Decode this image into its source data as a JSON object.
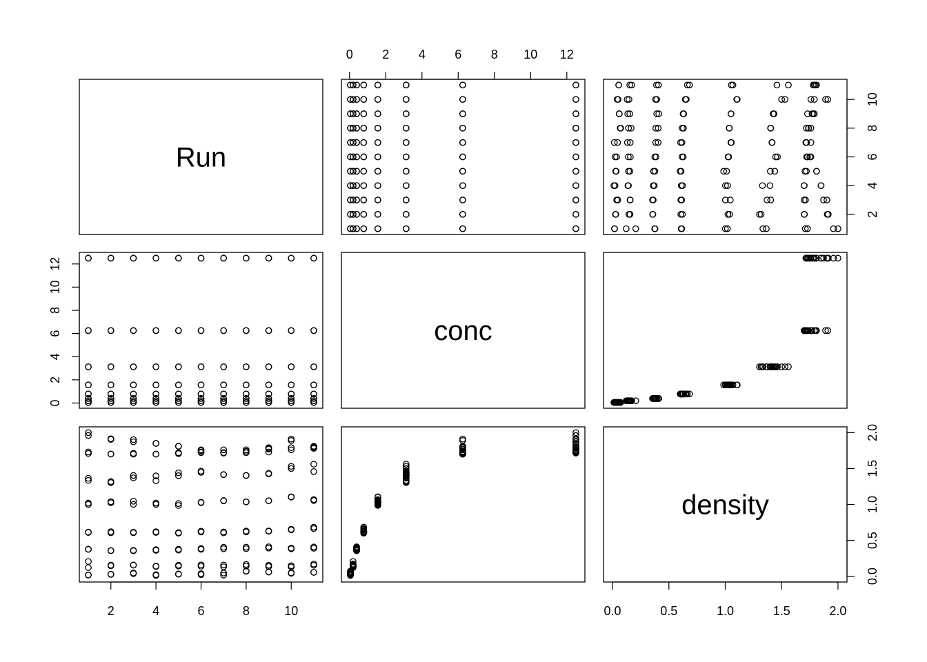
{
  "chart_data": {
    "type": "scatter",
    "layout": "pairs-matrix",
    "variables": [
      "Run",
      "conc",
      "density"
    ],
    "axes": {
      "Run": {
        "ticks": [
          2,
          4,
          6,
          8,
          10
        ],
        "tick_labels": [
          "2",
          "4",
          "6",
          "8",
          "10"
        ],
        "range": [
          1,
          11
        ]
      },
      "conc": {
        "ticks": [
          0,
          2,
          4,
          6,
          8,
          10,
          12
        ],
        "tick_labels": [
          "0",
          "2",
          "4",
          "6",
          "8",
          "10",
          "12"
        ],
        "range": [
          0.0488,
          12.5
        ]
      },
      "density": {
        "ticks": [
          0.0,
          0.5,
          1.0,
          1.5,
          2.0
        ],
        "tick_labels": [
          "0.0",
          "0.5",
          "1.0",
          "1.5",
          "2.0"
        ],
        "range": [
          0.0,
          2.0
        ]
      }
    },
    "observations": {
      "Run": [
        1,
        1,
        1,
        1,
        1,
        1,
        1,
        1,
        1,
        1,
        1,
        1,
        1,
        1,
        1,
        1,
        2,
        2,
        2,
        2,
        2,
        2,
        2,
        2,
        2,
        2,
        2,
        2,
        2,
        2,
        2,
        2,
        3,
        3,
        3,
        3,
        3,
        3,
        3,
        3,
        3,
        3,
        3,
        3,
        3,
        3,
        3,
        3,
        4,
        4,
        4,
        4,
        4,
        4,
        4,
        4,
        4,
        4,
        4,
        4,
        4,
        4,
        4,
        4,
        5,
        5,
        5,
        5,
        5,
        5,
        5,
        5,
        5,
        5,
        5,
        5,
        5,
        5,
        5,
        5,
        6,
        6,
        6,
        6,
        6,
        6,
        6,
        6,
        6,
        6,
        6,
        6,
        6,
        6,
        6,
        6,
        7,
        7,
        7,
        7,
        7,
        7,
        7,
        7,
        7,
        7,
        7,
        7,
        7,
        7,
        7,
        7,
        8,
        8,
        8,
        8,
        8,
        8,
        8,
        8,
        8,
        8,
        8,
        8,
        8,
        8,
        8,
        8,
        9,
        9,
        9,
        9,
        9,
        9,
        9,
        9,
        9,
        9,
        9,
        9,
        9,
        9,
        9,
        9,
        10,
        10,
        10,
        10,
        10,
        10,
        10,
        10,
        10,
        10,
        10,
        10,
        10,
        10,
        10,
        10,
        11,
        11,
        11,
        11,
        11,
        11,
        11,
        11,
        11,
        11,
        11,
        11,
        11,
        11,
        11,
        11
      ],
      "conc": [
        0.0488,
        0.0488,
        0.1953,
        0.1953,
        0.3906,
        0.3906,
        0.7812,
        0.7812,
        1.5625,
        1.5625,
        3.125,
        3.125,
        6.25,
        6.25,
        12.5,
        12.5,
        0.0488,
        0.0488,
        0.1953,
        0.1953,
        0.3906,
        0.3906,
        0.7812,
        0.7812,
        1.5625,
        1.5625,
        3.125,
        3.125,
        6.25,
        6.25,
        12.5,
        12.5,
        0.0488,
        0.0488,
        0.1953,
        0.1953,
        0.3906,
        0.3906,
        0.7812,
        0.7812,
        1.5625,
        1.5625,
        3.125,
        3.125,
        6.25,
        6.25,
        12.5,
        12.5,
        0.0488,
        0.0488,
        0.1953,
        0.1953,
        0.3906,
        0.3906,
        0.7812,
        0.7812,
        1.5625,
        1.5625,
        3.125,
        3.125,
        6.25,
        6.25,
        12.5,
        12.5,
        0.0488,
        0.0488,
        0.1953,
        0.1953,
        0.3906,
        0.3906,
        0.7812,
        0.7812,
        1.5625,
        1.5625,
        3.125,
        3.125,
        6.25,
        6.25,
        12.5,
        12.5,
        0.0488,
        0.0488,
        0.1953,
        0.1953,
        0.3906,
        0.3906,
        0.7812,
        0.7812,
        1.5625,
        1.5625,
        3.125,
        3.125,
        6.25,
        6.25,
        12.5,
        12.5,
        0.0488,
        0.0488,
        0.1953,
        0.1953,
        0.3906,
        0.3906,
        0.7812,
        0.7812,
        1.5625,
        1.5625,
        3.125,
        3.125,
        6.25,
        6.25,
        12.5,
        12.5,
        0.0488,
        0.0488,
        0.1953,
        0.1953,
        0.3906,
        0.3906,
        0.7812,
        0.7812,
        1.5625,
        1.5625,
        3.125,
        3.125,
        6.25,
        6.25,
        12.5,
        12.5,
        0.0488,
        0.0488,
        0.1953,
        0.1953,
        0.3906,
        0.3906,
        0.7812,
        0.7812,
        1.5625,
        1.5625,
        3.125,
        3.125,
        6.25,
        6.25,
        12.5,
        12.5,
        0.0488,
        0.0488,
        0.1953,
        0.1953,
        0.3906,
        0.3906,
        0.7812,
        0.7812,
        1.5625,
        1.5625,
        3.125,
        3.125,
        6.25,
        6.25,
        12.5,
        12.5,
        0.0488,
        0.0488,
        0.1953,
        0.1953,
        0.3906,
        0.3906,
        0.7812,
        0.7812,
        1.5625,
        1.5625,
        3.125,
        3.125,
        6.25,
        6.25,
        12.5,
        12.5
      ],
      "density": [
        0.017,
        0.018,
        0.121,
        0.206,
        0.377,
        0.374,
        0.614,
        0.609,
        1.019,
        1.001,
        1.334,
        1.364,
        1.73,
        1.71,
        2.0,
        1.96,
        0.026,
        0.029,
        0.146,
        0.155,
        0.356,
        0.358,
        0.62,
        0.606,
        1.038,
        1.024,
        1.304,
        1.318,
        1.702,
        1.701,
        1.905,
        1.914,
        0.046,
        0.037,
        0.155,
        0.157,
        0.355,
        0.361,
        0.613,
        0.606,
        1.001,
        1.045,
        1.403,
        1.37,
        1.7,
        1.712,
        1.902,
        1.872,
        0.012,
        0.022,
        0.141,
        0.137,
        0.361,
        0.37,
        0.62,
        0.61,
        1.002,
        1.02,
        1.33,
        1.397,
        1.7,
        1.701,
        1.85,
        1.85,
        0.028,
        0.032,
        0.142,
        0.154,
        0.376,
        0.364,
        0.608,
        0.6,
        0.986,
        1.012,
        1.4,
        1.44,
        1.707,
        1.72,
        1.81,
        1.81,
        0.023,
        0.036,
        0.14,
        0.158,
        0.375,
        0.386,
        0.627,
        0.617,
        1.03,
        1.025,
        1.447,
        1.463,
        1.722,
        1.73,
        1.76,
        1.75,
        0.016,
        0.045,
        0.132,
        0.157,
        0.383,
        0.404,
        0.604,
        0.616,
        1.054,
        1.05,
        1.414,
        1.416,
        1.72,
        1.76,
        1.72,
        1.715,
        0.068,
        0.072,
        0.142,
        0.165,
        0.384,
        0.405,
        0.629,
        0.618,
        1.036,
        1.035,
        1.402,
        1.404,
        1.738,
        1.76,
        1.74,
        1.72,
        0.059,
        0.06,
        0.135,
        0.153,
        0.392,
        0.41,
        0.631,
        0.626,
        1.051,
        1.051,
        1.433,
        1.425,
        1.77,
        1.79,
        1.78,
        1.73,
        0.042,
        0.049,
        0.13,
        0.146,
        0.382,
        0.392,
        0.646,
        0.654,
        1.106,
        1.102,
        1.5,
        1.53,
        1.91,
        1.89,
        1.79,
        1.76,
        0.055,
        0.055,
        0.153,
        0.17,
        0.39,
        0.407,
        0.664,
        0.683,
        1.054,
        1.068,
        1.458,
        1.56,
        1.81,
        1.8,
        1.79,
        1.78
      ]
    }
  }
}
